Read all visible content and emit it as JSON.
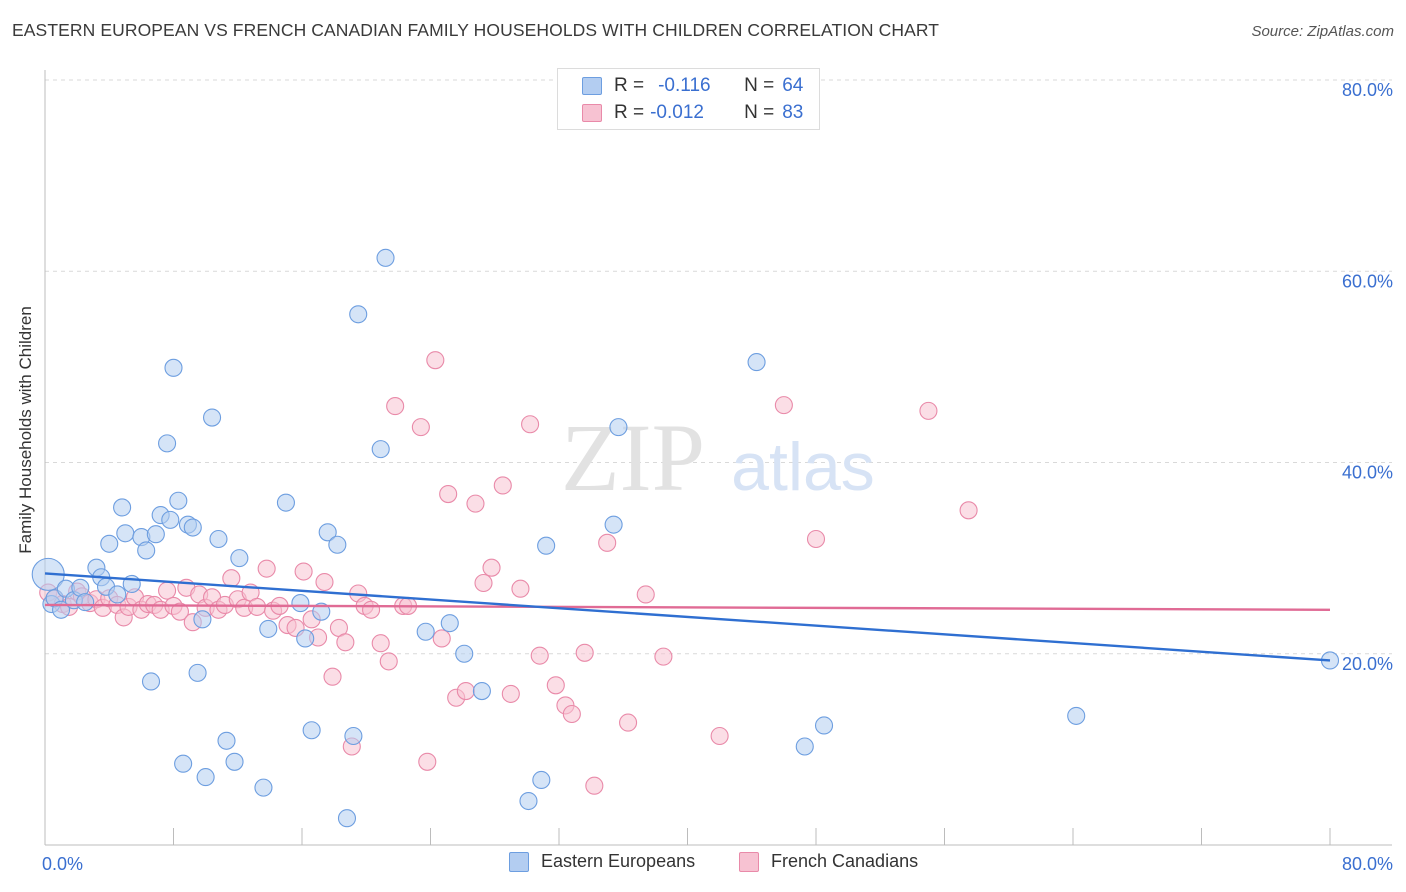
{
  "title": "EASTERN EUROPEAN VS FRENCH CANADIAN FAMILY HOUSEHOLDS WITH CHILDREN CORRELATION CHART",
  "source": "Source: ZipAtlas.com",
  "watermark": {
    "zip": "ZIP",
    "atlas": "atlas"
  },
  "legend": {
    "eastern": {
      "r_label": "R =",
      "r_value": "-0.116",
      "n_label": "N =",
      "n_value": "64"
    },
    "french": {
      "r_label": "R =",
      "r_value": "-0.012",
      "n_label": "N =",
      "n_value": "83"
    }
  },
  "colors": {
    "eastern_fill": "#b3cdf1",
    "eastern_stroke": "#6d9ee0",
    "eastern_line": "#2f6fd1",
    "french_fill": "#f7c2d2",
    "french_stroke": "#e98aa9",
    "french_line": "#e06b95",
    "tick_label": "#3a6fd0",
    "grid": "#d9d9d9"
  },
  "chart_data": {
    "type": "scatter",
    "title": "EASTERN EUROPEAN VS FRENCH CANADIAN FAMILY HOUSEHOLDS WITH CHILDREN CORRELATION CHART",
    "xlabel": "",
    "ylabel": "Family Households with Children",
    "xlim": [
      0,
      80
    ],
    "ylim": [
      0,
      82
    ],
    "x_tick_labels": [
      "0.0%",
      "80.0%"
    ],
    "y_ticks": [
      20,
      40,
      60,
      80
    ],
    "y_tick_labels": [
      "20.0%",
      "40.0%",
      "60.0%",
      "80.0%"
    ],
    "grid": true,
    "legend_position": "top-center",
    "series": [
      {
        "name": "Eastern Europeans",
        "trend": [
          [
            0,
            28.4
          ],
          [
            80,
            19.3
          ]
        ],
        "points": [
          [
            0.2,
            28.3
          ],
          [
            0.4,
            25.2
          ],
          [
            0.6,
            25.8
          ],
          [
            1.0,
            24.6
          ],
          [
            1.3,
            26.8
          ],
          [
            1.8,
            25.6
          ],
          [
            2.2,
            26.9
          ],
          [
            2.5,
            25.4
          ],
          [
            3.2,
            29.0
          ],
          [
            3.5,
            28.0
          ],
          [
            3.8,
            27.0
          ],
          [
            4.0,
            31.5
          ],
          [
            4.5,
            26.2
          ],
          [
            4.8,
            35.3
          ],
          [
            5.0,
            32.6
          ],
          [
            5.4,
            27.3
          ],
          [
            6.0,
            32.2
          ],
          [
            6.3,
            30.8
          ],
          [
            6.6,
            17.1
          ],
          [
            6.9,
            32.5
          ],
          [
            7.2,
            34.5
          ],
          [
            7.6,
            42.0
          ],
          [
            7.8,
            34.0
          ],
          [
            8.0,
            49.9
          ],
          [
            8.3,
            36.0
          ],
          [
            8.6,
            8.5
          ],
          [
            8.9,
            33.5
          ],
          [
            9.2,
            33.2
          ],
          [
            9.5,
            18.0
          ],
          [
            9.8,
            23.6
          ],
          [
            10.0,
            7.1
          ],
          [
            10.4,
            44.7
          ],
          [
            10.8,
            32.0
          ],
          [
            11.3,
            10.9
          ],
          [
            11.8,
            8.7
          ],
          [
            12.1,
            30.0
          ],
          [
            13.6,
            6.0
          ],
          [
            13.9,
            22.6
          ],
          [
            15.0,
            35.8
          ],
          [
            15.9,
            25.3
          ],
          [
            16.2,
            21.6
          ],
          [
            16.6,
            12.0
          ],
          [
            17.2,
            24.4
          ],
          [
            17.6,
            32.7
          ],
          [
            18.2,
            31.4
          ],
          [
            18.8,
            2.8
          ],
          [
            19.2,
            11.4
          ],
          [
            19.5,
            55.5
          ],
          [
            20.9,
            41.4
          ],
          [
            21.2,
            61.4
          ],
          [
            23.7,
            22.3
          ],
          [
            25.2,
            23.2
          ],
          [
            26.1,
            20.0
          ],
          [
            27.2,
            16.1
          ],
          [
            30.1,
            4.6
          ],
          [
            30.9,
            6.8
          ],
          [
            31.2,
            31.3
          ],
          [
            35.4,
            33.5
          ],
          [
            35.7,
            43.7
          ],
          [
            44.3,
            50.5
          ],
          [
            47.3,
            10.3
          ],
          [
            48.5,
            12.5
          ],
          [
            64.2,
            13.5
          ],
          [
            80.0,
            19.3
          ]
        ]
      },
      {
        "name": "French Canadians",
        "trend": [
          [
            0,
            25.1
          ],
          [
            80,
            24.6
          ]
        ],
        "points": [
          [
            0.2,
            26.4
          ],
          [
            0.6,
            25.8
          ],
          [
            1.1,
            25.2
          ],
          [
            1.5,
            24.9
          ],
          [
            2.0,
            26.5
          ],
          [
            2.3,
            26.0
          ],
          [
            2.8,
            25.3
          ],
          [
            3.2,
            25.7
          ],
          [
            3.6,
            24.8
          ],
          [
            4.0,
            25.8
          ],
          [
            4.5,
            25.1
          ],
          [
            4.9,
            23.8
          ],
          [
            5.2,
            24.9
          ],
          [
            5.6,
            25.9
          ],
          [
            6.0,
            24.6
          ],
          [
            6.4,
            25.2
          ],
          [
            6.8,
            25.1
          ],
          [
            7.2,
            24.6
          ],
          [
            7.6,
            26.6
          ],
          [
            8.0,
            25.0
          ],
          [
            8.4,
            24.4
          ],
          [
            8.8,
            26.9
          ],
          [
            9.2,
            23.3
          ],
          [
            9.6,
            26.2
          ],
          [
            10.0,
            24.8
          ],
          [
            10.4,
            25.9
          ],
          [
            10.8,
            24.6
          ],
          [
            11.2,
            25.1
          ],
          [
            11.6,
            27.9
          ],
          [
            12.0,
            25.7
          ],
          [
            12.4,
            24.8
          ],
          [
            12.8,
            26.4
          ],
          [
            13.2,
            24.9
          ],
          [
            13.8,
            28.9
          ],
          [
            14.2,
            24.5
          ],
          [
            14.6,
            25.0
          ],
          [
            15.1,
            23.0
          ],
          [
            15.6,
            22.7
          ],
          [
            16.1,
            28.6
          ],
          [
            16.6,
            23.6
          ],
          [
            17.0,
            21.7
          ],
          [
            17.4,
            27.5
          ],
          [
            17.9,
            17.6
          ],
          [
            18.3,
            22.7
          ],
          [
            18.7,
            21.2
          ],
          [
            19.1,
            10.3
          ],
          [
            19.5,
            26.3
          ],
          [
            19.9,
            25.0
          ],
          [
            20.3,
            24.6
          ],
          [
            20.9,
            21.1
          ],
          [
            21.4,
            19.2
          ],
          [
            21.8,
            45.9
          ],
          [
            22.3,
            25.0
          ],
          [
            22.6,
            25.0
          ],
          [
            23.4,
            43.7
          ],
          [
            23.8,
            8.7
          ],
          [
            24.3,
            50.7
          ],
          [
            24.7,
            21.6
          ],
          [
            25.1,
            36.7
          ],
          [
            25.6,
            15.4
          ],
          [
            26.2,
            16.1
          ],
          [
            26.8,
            35.7
          ],
          [
            27.3,
            27.4
          ],
          [
            27.8,
            29.0
          ],
          [
            28.5,
            37.6
          ],
          [
            29.0,
            15.8
          ],
          [
            29.6,
            26.8
          ],
          [
            30.2,
            44.0
          ],
          [
            30.8,
            19.8
          ],
          [
            31.8,
            16.7
          ],
          [
            32.4,
            14.6
          ],
          [
            32.8,
            13.7
          ],
          [
            33.6,
            20.1
          ],
          [
            34.2,
            6.2
          ],
          [
            35.0,
            31.6
          ],
          [
            36.3,
            12.8
          ],
          [
            37.4,
            26.2
          ],
          [
            38.5,
            19.7
          ],
          [
            42.0,
            11.4
          ],
          [
            46.0,
            46.0
          ],
          [
            48.0,
            32.0
          ],
          [
            55.0,
            45.4
          ],
          [
            57.5,
            35.0
          ]
        ]
      }
    ]
  }
}
